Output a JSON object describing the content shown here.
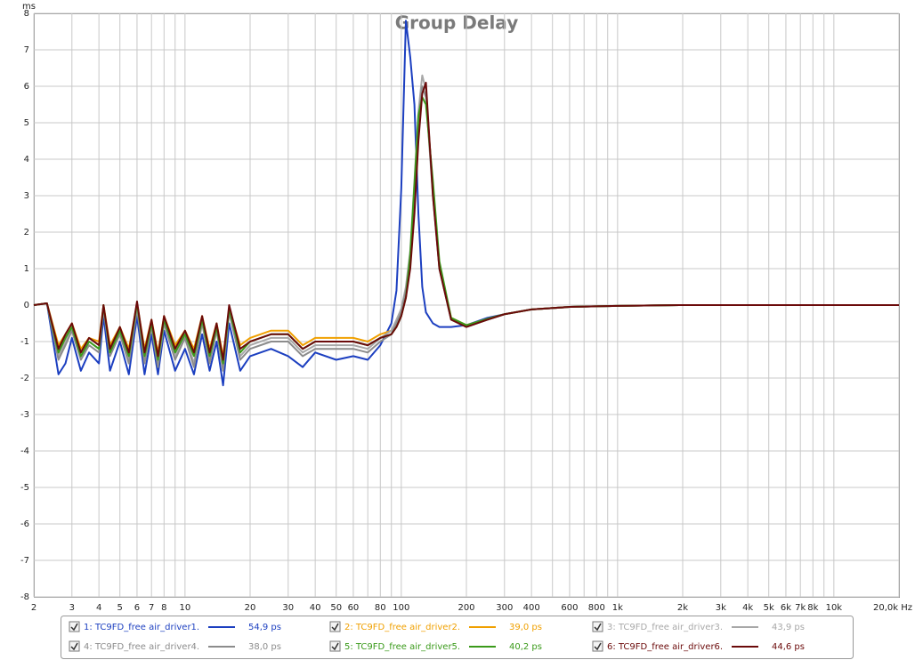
{
  "chart_data": {
    "type": "line",
    "title": "Group Delay",
    "y_label": "ms",
    "xscale": "log",
    "grid": true,
    "xlim": [
      2,
      20000
    ],
    "ylim": [
      -8,
      8
    ],
    "yticks": [
      -8,
      -7,
      -6,
      -5,
      -4,
      -3,
      -2,
      -1,
      0,
      1,
      2,
      3,
      4,
      5,
      6,
      7,
      8
    ],
    "xticks": [
      2,
      3,
      4,
      5,
      6,
      7,
      8,
      10,
      20,
      30,
      40,
      50,
      60,
      80,
      100,
      200,
      300,
      400,
      600,
      800,
      {
        "value": 1000,
        "label": "1k"
      },
      {
        "value": 2000,
        "label": "2k"
      },
      {
        "value": 3000,
        "label": "3k"
      },
      {
        "value": 4000,
        "label": "4k"
      },
      {
        "value": 5000,
        "label": "5k"
      },
      {
        "value": 6000,
        "label": "6k"
      },
      {
        "value": 7000,
        "label": "7k"
      },
      {
        "value": 8000,
        "label": "8k"
      },
      {
        "value": 10000,
        "label": "10k"
      },
      {
        "value": 20000,
        "label": "20,0k Hz"
      }
    ],
    "x_minor_ticks": [
      9,
      70,
      90,
      500,
      700,
      900,
      9000
    ],
    "x": [
      2,
      2.3,
      2.6,
      2.8,
      3,
      3.3,
      3.6,
      4,
      4.2,
      4.5,
      5,
      5.5,
      6,
      6.5,
      7,
      7.5,
      8,
      9,
      10,
      11,
      12,
      13,
      14,
      15,
      16,
      18,
      20,
      25,
      30,
      35,
      40,
      50,
      60,
      70,
      80,
      90,
      95,
      100,
      105,
      110,
      115,
      120,
      125,
      130,
      140,
      150,
      170,
      200,
      250,
      300,
      400,
      600,
      1000,
      2000,
      5000,
      20000
    ],
    "series": [
      {
        "name": "1: TC9FD_free air_driver1.",
        "legend_value": "54,9 ps",
        "color": "#1c3fc0",
        "values": [
          0,
          0.05,
          -1.9,
          -1.6,
          -0.9,
          -1.8,
          -1.3,
          -1.6,
          -0.3,
          -1.8,
          -1.0,
          -1.9,
          -0.3,
          -1.9,
          -0.8,
          -1.9,
          -0.7,
          -1.8,
          -1.2,
          -1.9,
          -0.8,
          -1.8,
          -1.0,
          -2.2,
          -0.5,
          -1.8,
          -1.4,
          -1.2,
          -1.4,
          -1.7,
          -1.3,
          -1.5,
          -1.4,
          -1.5,
          -1.1,
          -0.5,
          0.4,
          3.2,
          7.8,
          6.8,
          5.5,
          2.5,
          0.5,
          -0.2,
          -0.5,
          -0.6,
          -0.6,
          -0.55,
          -0.35,
          -0.25,
          -0.12,
          -0.05,
          -0.02,
          0,
          0,
          0
        ]
      },
      {
        "name": "2: TC9FD_free air_driver2.",
        "legend_value": "39,0 ps",
        "color": "#f0a000",
        "values": [
          0,
          0.05,
          -1.1,
          -0.8,
          -0.5,
          -1.2,
          -0.9,
          -1.0,
          0,
          -1.1,
          -0.6,
          -1.2,
          0.05,
          -1.2,
          -0.4,
          -1.3,
          -0.3,
          -1.1,
          -0.7,
          -1.2,
          -0.3,
          -1.2,
          -0.5,
          -1.4,
          -0.1,
          -1.1,
          -0.9,
          -0.7,
          -0.7,
          -1.1,
          -0.9,
          -0.9,
          -0.9,
          -1.0,
          -0.8,
          -0.7,
          -0.5,
          -0.2,
          0.3,
          1.2,
          3.0,
          5.0,
          5.9,
          5.8,
          3.2,
          1.1,
          -0.35,
          -0.55,
          -0.38,
          -0.25,
          -0.12,
          -0.05,
          -0.02,
          0,
          0,
          0
        ]
      },
      {
        "name": "3: TC9FD_free air_driver3.",
        "legend_value": "43,9 ps",
        "color": "#a8a8a8",
        "values": [
          0,
          0.05,
          -1.4,
          -1.0,
          -0.6,
          -1.4,
          -1.0,
          -1.2,
          -0.1,
          -1.3,
          -0.7,
          -1.5,
          0,
          -1.5,
          -0.5,
          -1.6,
          -0.4,
          -1.4,
          -0.8,
          -1.6,
          -0.4,
          -1.5,
          -0.6,
          -1.7,
          -0.1,
          -1.4,
          -1.1,
          -0.9,
          -0.9,
          -1.3,
          -1.1,
          -1.1,
          -1.1,
          -1.2,
          -0.9,
          -0.7,
          -0.4,
          -0.1,
          0.5,
          1.5,
          3.4,
          5.3,
          6.3,
          5.9,
          3.1,
          1.0,
          -0.4,
          -0.6,
          -0.4,
          -0.25,
          -0.12,
          -0.05,
          -0.02,
          0,
          0,
          0
        ]
      },
      {
        "name": "4: TC9FD_free air_driver4.",
        "legend_value": "38,0 ps",
        "color": "#8c8c8c",
        "values": [
          0,
          0.05,
          -1.5,
          -1.1,
          -0.7,
          -1.5,
          -1.1,
          -1.3,
          -0.1,
          -1.4,
          -0.8,
          -1.6,
          -0.1,
          -1.6,
          -0.6,
          -1.7,
          -0.5,
          -1.5,
          -0.9,
          -1.7,
          -0.5,
          -1.6,
          -0.7,
          -1.8,
          -0.2,
          -1.5,
          -1.2,
          -1.0,
          -1.0,
          -1.4,
          -1.2,
          -1.2,
          -1.2,
          -1.3,
          -1.0,
          -0.8,
          -0.5,
          -0.2,
          0.4,
          1.3,
          3.2,
          5.1,
          6.0,
          5.7,
          3.0,
          1.0,
          -0.4,
          -0.6,
          -0.4,
          -0.25,
          -0.12,
          -0.05,
          -0.02,
          0,
          0,
          0
        ]
      },
      {
        "name": "5: TC9FD_free air_driver5.",
        "legend_value": "40,2 ps",
        "color": "#3a9a1a",
        "values": [
          0,
          0.05,
          -1.3,
          -0.9,
          -0.6,
          -1.4,
          -1.0,
          -1.2,
          0,
          -1.3,
          -0.7,
          -1.4,
          0.05,
          -1.4,
          -0.5,
          -1.5,
          -0.4,
          -1.3,
          -0.8,
          -1.4,
          -0.4,
          -1.4,
          -0.6,
          -1.6,
          -0.1,
          -1.3,
          -1.0,
          -0.8,
          -0.8,
          -1.2,
          -1.0,
          -1.0,
          -1.0,
          -1.1,
          -0.9,
          -0.8,
          -0.6,
          -0.3,
          0.2,
          1.4,
          3.3,
          5.2,
          5.7,
          5.5,
          3.4,
          1.2,
          -0.35,
          -0.55,
          -0.38,
          -0.25,
          -0.12,
          -0.05,
          -0.02,
          0,
          0,
          0
        ]
      },
      {
        "name": "6: TC9FD_free air_driver6.",
        "legend_value": "44,6 ps",
        "color": "#6b0a0a",
        "values": [
          0,
          0.05,
          -1.2,
          -0.8,
          -0.5,
          -1.3,
          -0.9,
          -1.1,
          0,
          -1.2,
          -0.6,
          -1.3,
          0.1,
          -1.3,
          -0.4,
          -1.4,
          -0.3,
          -1.2,
          -0.7,
          -1.3,
          -0.3,
          -1.3,
          -0.5,
          -1.5,
          0,
          -1.2,
          -1,
          -0.8,
          -0.8,
          -1.2,
          -1,
          -1,
          -1,
          -1.1,
          -0.9,
          -0.8,
          -0.6,
          -0.3,
          0.2,
          1,
          2.5,
          4.5,
          5.8,
          6.1,
          3,
          1,
          -0.4,
          -0.6,
          -0.4,
          -0.25,
          -0.12,
          -0.05,
          -0.02,
          0,
          0,
          0
        ]
      }
    ]
  }
}
